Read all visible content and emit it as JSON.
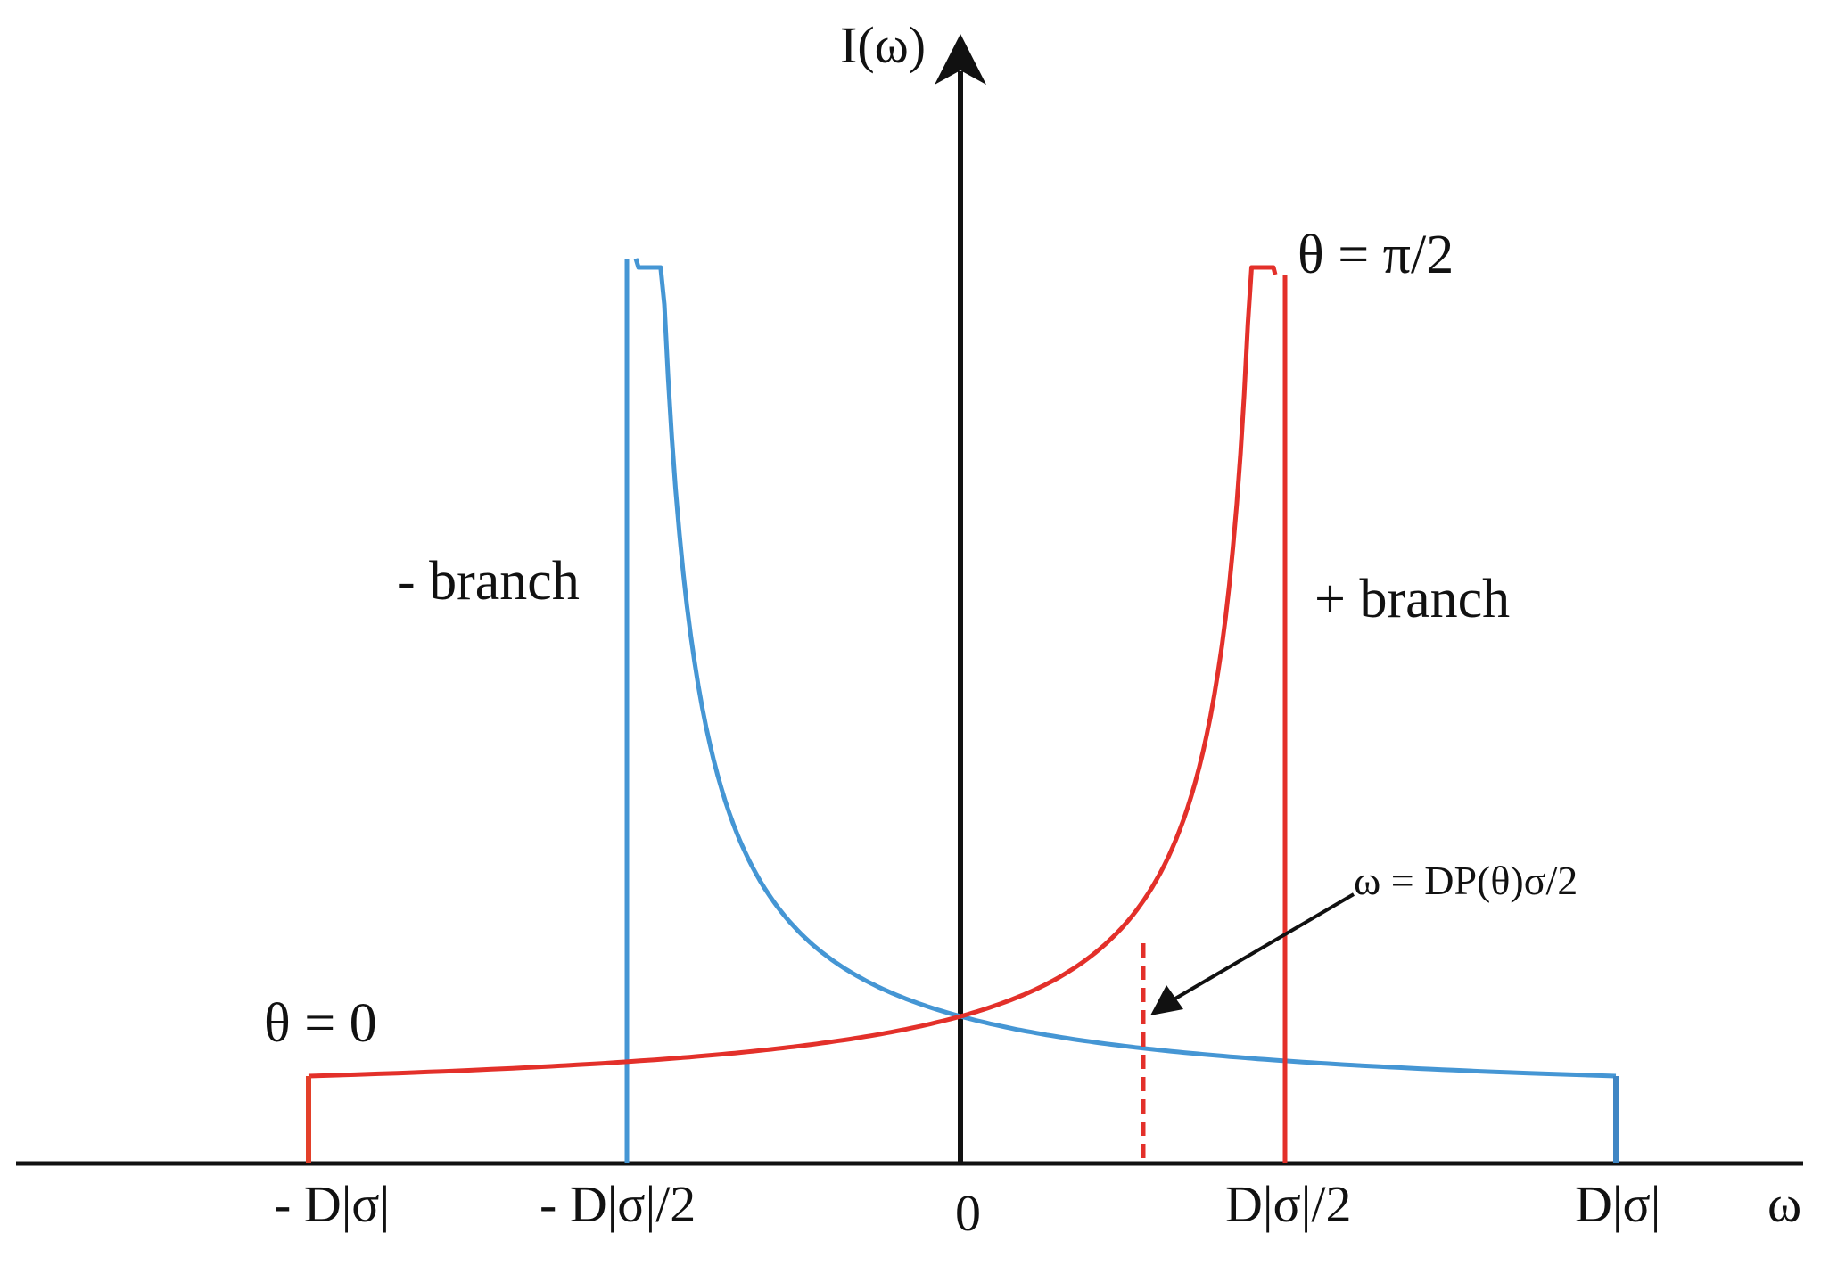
{
  "axes": {
    "y_label": "I(ω)",
    "x_label": "ω"
  },
  "ticks": {
    "neg_d": "- D|σ|",
    "neg_half": "- D|σ|/2",
    "zero": "0",
    "pos_half": "D|σ|/2",
    "pos_d": "D|σ|"
  },
  "labels": {
    "theta_zero": "θ = 0",
    "theta_half_pi": "θ = π/2",
    "minus_branch": "- branch",
    "plus_branch": "+ branch",
    "annotation": "ω = DP(θ)σ/2"
  },
  "colors": {
    "axis": "#111111",
    "plus_branch": "#e3302a",
    "minus_branch": "#4596d4"
  }
}
